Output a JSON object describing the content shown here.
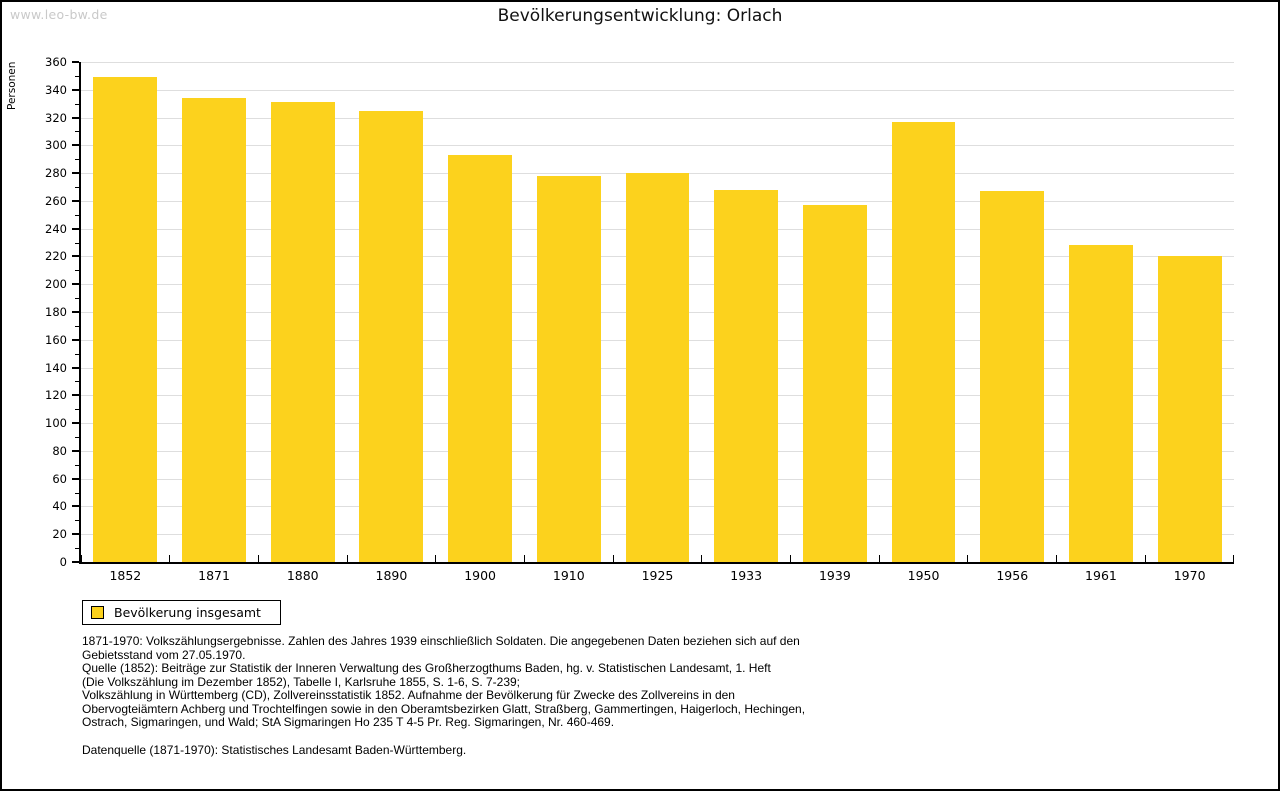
{
  "page": {
    "watermark": "www.leo-bw.de",
    "title": "Bevölkerungsentwicklung: Orlach"
  },
  "chart_data": {
    "type": "bar",
    "title": "Bevölkerungsentwicklung: Orlach",
    "xlabel": "",
    "ylabel": "Personen",
    "categories": [
      "1852",
      "1871",
      "1880",
      "1890",
      "1900",
      "1910",
      "1925",
      "1933",
      "1939",
      "1950",
      "1956",
      "1961",
      "1970"
    ],
    "series": [
      {
        "name": "Bevölkerung insgesamt",
        "values": [
          349,
          334,
          331,
          325,
          293,
          278,
          280,
          268,
          257,
          317,
          267,
          228,
          220
        ]
      }
    ],
    "ylim": [
      0,
      360
    ],
    "y_major_step": 20,
    "y_minor_step": 10,
    "grid": "horizontal-major",
    "bar_color": "#FCD21D",
    "gridline_color": "#dedede",
    "legend_position": "bottom-left"
  },
  "legend": {
    "items": [
      {
        "label": "Bevölkerung insgesamt",
        "swatch_color": "#FCD21D"
      }
    ]
  },
  "footnotes": {
    "lines": [
      "1871-1970: Volkszählungsergebnisse. Zahlen des Jahres 1939 einschließlich Soldaten. Die angegebenen Daten beziehen sich auf den",
      "Gebietsstand vom 27.05.1970.",
      "Quelle (1852): Beiträge zur Statistik der Inneren Verwaltung des Großherzogthums Baden, hg. v. Statistischen Landesamt, 1. Heft",
      "(Die Volkszählung im Dezember 1852), Tabelle I, Karlsruhe 1855, S. 1-6, S. 7-239;",
      "Volkszählung in Württemberg (CD), Zollvereinsstatistik 1852. Aufnahme der Bevölkerung für Zwecke des Zollvereins in den",
      "Obervogteiämtern Achberg und Trochtelfingen sowie in den Oberamtsbezirken Glatt, Straßberg, Gammertingen, Haigerloch, Hechingen,",
      "Ostrach, Sigmaringen, und Wald; StA Sigmaringen Ho 235 T 4-5 Pr. Reg. Sigmaringen, Nr. 460-469.",
      "Datenquelle (1871-1970): Statistisches Landesamt Baden-Württemberg."
    ]
  }
}
